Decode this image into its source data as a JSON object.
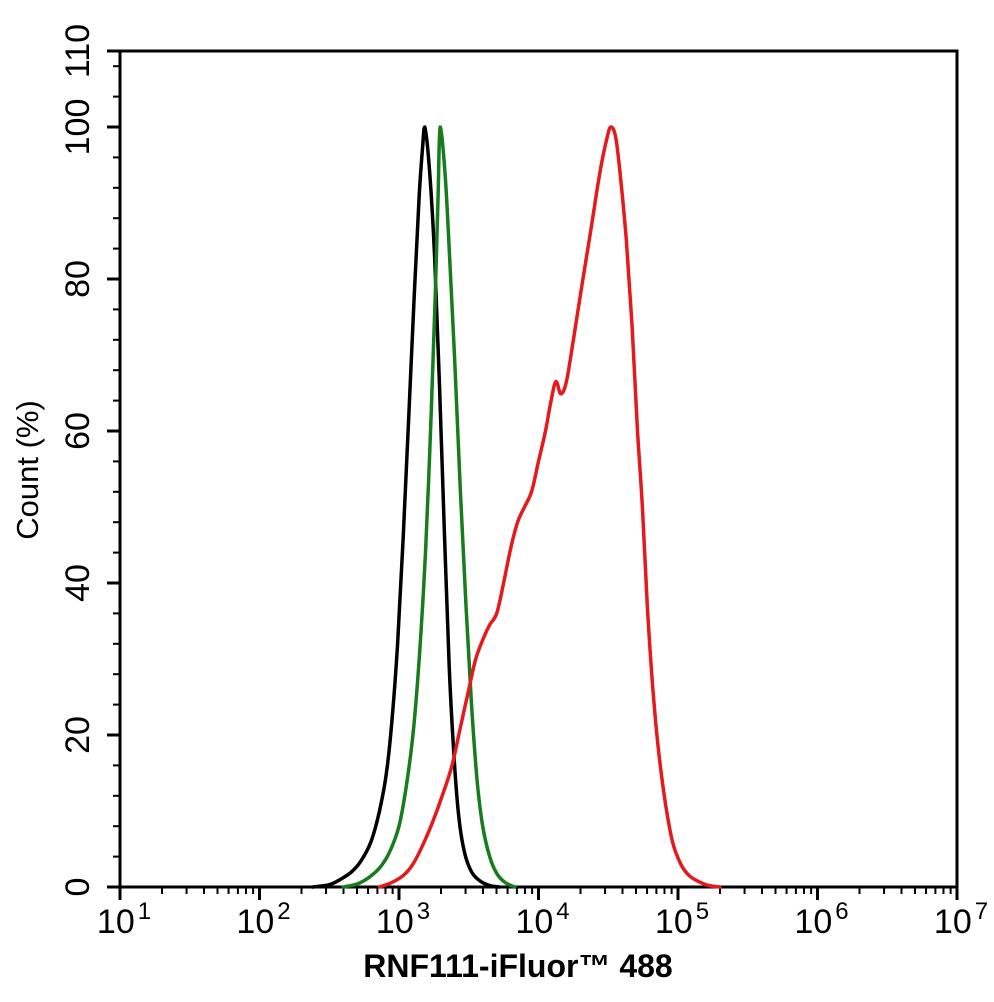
{
  "figure": {
    "kind": "flow-cytometry-overlay-histogram",
    "background_color": "#ffffff",
    "axis_color": "#000000"
  },
  "chart_data": {
    "type": "line",
    "subtype": "flow-cytometry-histogram-overlay",
    "title": "",
    "xlabel": "RNF111-iFluor™ 488",
    "ylabel": "Count (%)",
    "x_scale": "log10",
    "x_base": 10,
    "xlim_log10": [
      1,
      7
    ],
    "ylim": [
      0,
      110
    ],
    "grid": false,
    "legend": "none",
    "x_major_tick_exponents": [
      1,
      2,
      3,
      4,
      5,
      6,
      7
    ],
    "x_minor_ticks_per_decade": [
      2,
      3,
      4,
      5,
      6,
      7,
      8,
      9
    ],
    "y_major_ticks": [
      0,
      20,
      40,
      60,
      80,
      100,
      110
    ],
    "y_minor_tick_step": 4,
    "series": [
      {
        "name": "black",
        "color": "#000000",
        "peak_x": 1530,
        "peak_y_percent": 100,
        "points": [
          [
            2.38,
            0
          ],
          [
            2.5,
            0.3
          ],
          [
            2.58,
            1
          ],
          [
            2.66,
            2
          ],
          [
            2.73,
            3.5
          ],
          [
            2.8,
            6
          ],
          [
            2.86,
            10
          ],
          [
            2.91,
            15
          ],
          [
            2.95,
            22
          ],
          [
            2.99,
            32
          ],
          [
            3.03,
            46
          ],
          [
            3.07,
            62
          ],
          [
            3.11,
            78
          ],
          [
            3.145,
            91
          ],
          [
            3.17,
            97.5
          ],
          [
            3.185,
            100
          ],
          [
            3.22,
            94
          ],
          [
            3.255,
            83
          ],
          [
            3.29,
            66
          ],
          [
            3.325,
            47
          ],
          [
            3.36,
            29
          ],
          [
            3.395,
            17
          ],
          [
            3.43,
            9
          ],
          [
            3.47,
            4.5
          ],
          [
            3.52,
            2
          ],
          [
            3.58,
            0.8
          ],
          [
            3.65,
            0.2
          ],
          [
            3.72,
            0
          ]
        ]
      },
      {
        "name": "green",
        "color": "#177c1e",
        "peak_x": 1970,
        "peak_y_percent": 100,
        "points": [
          [
            2.6,
            0
          ],
          [
            2.7,
            0.4
          ],
          [
            2.78,
            1.2
          ],
          [
            2.86,
            2.5
          ],
          [
            2.93,
            4.5
          ],
          [
            3.0,
            8
          ],
          [
            3.05,
            13
          ],
          [
            3.1,
            20
          ],
          [
            3.145,
            30
          ],
          [
            3.19,
            44
          ],
          [
            3.23,
            62
          ],
          [
            3.26,
            78
          ],
          [
            3.28,
            91
          ],
          [
            3.295,
            100
          ],
          [
            3.33,
            94
          ],
          [
            3.36,
            84
          ],
          [
            3.4,
            69
          ],
          [
            3.44,
            52
          ],
          [
            3.48,
            37
          ],
          [
            3.52,
            24
          ],
          [
            3.56,
            14
          ],
          [
            3.6,
            8
          ],
          [
            3.65,
            4
          ],
          [
            3.7,
            1.8
          ],
          [
            3.76,
            0.6
          ],
          [
            3.83,
            0
          ]
        ]
      },
      {
        "name": "red",
        "color": "#e41a1c",
        "peak_x": 33000,
        "peak_y_percent": 100,
        "points": [
          [
            2.86,
            0
          ],
          [
            2.95,
            0.6
          ],
          [
            3.03,
            1.5
          ],
          [
            3.1,
            3
          ],
          [
            3.17,
            5.5
          ],
          [
            3.24,
            8.5
          ],
          [
            3.31,
            12
          ],
          [
            3.38,
            16
          ],
          [
            3.44,
            21
          ],
          [
            3.5,
            26
          ],
          [
            3.55,
            30
          ],
          [
            3.6,
            32.5
          ],
          [
            3.65,
            34.5
          ],
          [
            3.7,
            36
          ],
          [
            3.75,
            40
          ],
          [
            3.8,
            44.5
          ],
          [
            3.85,
            48
          ],
          [
            3.9,
            50
          ],
          [
            3.95,
            52
          ],
          [
            4.0,
            56
          ],
          [
            4.05,
            60
          ],
          [
            4.09,
            64
          ],
          [
            4.125,
            66.5
          ],
          [
            4.16,
            64.9
          ],
          [
            4.2,
            66.5
          ],
          [
            4.25,
            72
          ],
          [
            4.31,
            79
          ],
          [
            4.38,
            87
          ],
          [
            4.44,
            94
          ],
          [
            4.49,
            98.5
          ],
          [
            4.52,
            100
          ],
          [
            4.555,
            98.5
          ],
          [
            4.59,
            93
          ],
          [
            4.63,
            85
          ],
          [
            4.67,
            74
          ],
          [
            4.71,
            60
          ],
          [
            4.745,
            50
          ],
          [
            4.78,
            37
          ],
          [
            4.82,
            26
          ],
          [
            4.86,
            18
          ],
          [
            4.91,
            11
          ],
          [
            4.96,
            6
          ],
          [
            5.02,
            3
          ],
          [
            5.08,
            1.5
          ],
          [
            5.15,
            0.7
          ],
          [
            5.22,
            0.2
          ],
          [
            5.3,
            0
          ]
        ]
      }
    ]
  }
}
